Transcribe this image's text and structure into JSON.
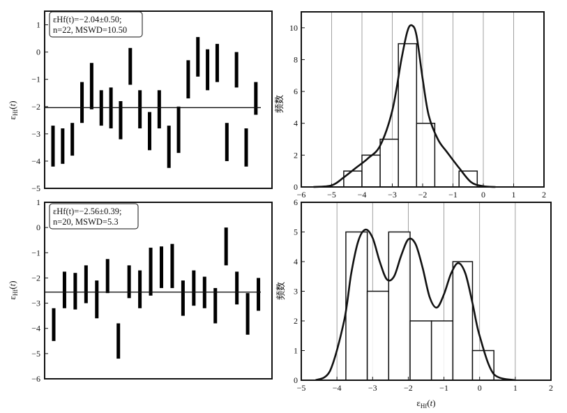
{
  "chart_data": [
    {
      "type": "bar",
      "subtype": "weighted-mean error bars",
      "ylabel": "εHf(t)",
      "ylim": [
        -5,
        1.5
      ],
      "yticks": [
        1,
        0,
        -1,
        -2,
        -3,
        -4,
        -5
      ],
      "mean_line": -2.04,
      "annotation": {
        "line1": "εHf(t)=−2.04±0.50;",
        "line2": "n=22, MSWD=10.50"
      },
      "bars": [
        {
          "low": -4.2,
          "high": -2.7
        },
        {
          "low": -4.1,
          "high": -2.8
        },
        {
          "low": -3.8,
          "high": -2.6
        },
        {
          "low": -2.6,
          "high": -1.1
        },
        {
          "low": -2.1,
          "high": -0.4
        },
        {
          "low": -2.7,
          "high": -1.4
        },
        {
          "low": -2.8,
          "high": -1.3
        },
        {
          "low": -3.2,
          "high": -1.8
        },
        {
          "low": -1.2,
          "high": 0.15
        },
        {
          "low": -2.8,
          "high": -1.4
        },
        {
          "low": -3.6,
          "high": -2.2
        },
        {
          "low": -2.8,
          "high": -1.4
        },
        {
          "low": -4.25,
          "high": -2.7
        },
        {
          "low": -3.7,
          "high": -2.0
        },
        {
          "low": -1.7,
          "high": -0.3
        },
        {
          "low": -0.9,
          "high": 0.55
        },
        {
          "low": -1.4,
          "high": 0.1
        },
        {
          "low": -1.1,
          "high": 0.3
        },
        {
          "low": -4.0,
          "high": -2.6
        },
        {
          "low": -1.3,
          "high": 0.0
        },
        {
          "low": -4.2,
          "high": -2.8
        },
        {
          "low": -2.3,
          "high": -1.1
        }
      ]
    },
    {
      "type": "bar",
      "subtype": "histogram with density curve",
      "ylabel": "频数",
      "xlim": [
        -6,
        2
      ],
      "ylim": [
        0,
        11
      ],
      "xticks": [
        -6,
        -5,
        -4,
        -3,
        -2,
        -1,
        0,
        1,
        2
      ],
      "yticks": [
        0,
        2,
        4,
        6,
        8,
        10
      ],
      "gridlines_x": [
        -5,
        -4,
        -3,
        -2,
        -1,
        0,
        1
      ],
      "bins": [
        {
          "from": -4.6,
          "to": -4.0,
          "count": 1
        },
        {
          "from": -4.0,
          "to": -3.4,
          "count": 2
        },
        {
          "from": -3.4,
          "to": -2.8,
          "count": 3
        },
        {
          "from": -2.8,
          "to": -2.2,
          "count": 9
        },
        {
          "from": -2.2,
          "to": -1.6,
          "count": 4
        },
        {
          "from": -1.6,
          "to": -1.0,
          "count": 0
        },
        {
          "from": -0.8,
          "to": -0.2,
          "count": 1
        }
      ],
      "curve": {
        "x": [
          -5.6,
          -5.0,
          -4.6,
          -4.2,
          -3.8,
          -3.4,
          -3.0,
          -2.7,
          -2.5,
          -2.35,
          -2.2,
          -2.0,
          -1.8,
          -1.5,
          -1.2,
          -0.8,
          -0.4,
          0.0,
          0.4
        ],
        "y": [
          0.0,
          0.1,
          0.6,
          1.2,
          1.8,
          2.6,
          4.8,
          8.0,
          9.8,
          10.15,
          9.5,
          6.8,
          4.5,
          3.0,
          2.2,
          1.2,
          0.3,
          0.05,
          0.0
        ]
      }
    },
    {
      "type": "bar",
      "subtype": "weighted-mean error bars",
      "ylabel": "εHf(t)",
      "ylim": [
        -6,
        1
      ],
      "yticks": [
        1,
        0,
        -1,
        -2,
        -3,
        -4,
        -5,
        -6
      ],
      "mean_line": -2.56,
      "annotation": {
        "line1": "εHf(t)=−2.56±0.39;",
        "line2": "n=20, MSWD=5.3"
      },
      "bars": [
        {
          "low": -4.5,
          "high": -3.2
        },
        {
          "low": -3.2,
          "high": -1.75
        },
        {
          "low": -3.25,
          "high": -1.8
        },
        {
          "low": -3.0,
          "high": -1.5
        },
        {
          "low": -3.6,
          "high": -2.1
        },
        {
          "low": -2.6,
          "high": -1.25
        },
        {
          "low": -5.2,
          "high": -3.8
        },
        {
          "low": -2.8,
          "high": -1.5
        },
        {
          "low": -3.2,
          "high": -1.7
        },
        {
          "low": -2.7,
          "high": -0.8
        },
        {
          "low": -2.4,
          "high": -0.75
        },
        {
          "low": -2.4,
          "high": -0.65
        },
        {
          "low": -3.5,
          "high": -2.1
        },
        {
          "low": -3.1,
          "high": -1.7
        },
        {
          "low": -3.2,
          "high": -1.95
        },
        {
          "low": -3.8,
          "high": -2.4
        },
        {
          "low": -1.5,
          "high": 0.0
        },
        {
          "low": -3.05,
          "high": -1.75
        },
        {
          "low": -4.25,
          "high": -2.6
        },
        {
          "low": -3.3,
          "high": -2.0
        }
      ]
    },
    {
      "type": "bar",
      "subtype": "histogram with density curve",
      "xlabel": "εHf(t)",
      "ylabel": "频数",
      "xlim": [
        -5,
        2
      ],
      "ylim": [
        0,
        6
      ],
      "xticks": [
        -5,
        -4,
        -3,
        -2,
        -1,
        0,
        1,
        2
      ],
      "yticks": [
        0,
        1,
        2,
        3,
        4,
        5,
        6
      ],
      "gridlines_x": [
        -4,
        -3,
        -2,
        -1,
        0,
        1
      ],
      "bins": [
        {
          "from": -3.75,
          "to": -3.15,
          "count": 5
        },
        {
          "from": -3.15,
          "to": -2.55,
          "count": 3
        },
        {
          "from": -2.55,
          "to": -1.95,
          "count": 5
        },
        {
          "from": -1.95,
          "to": -1.35,
          "count": 2
        },
        {
          "from": -1.35,
          "to": -0.75,
          "count": 2
        },
        {
          "from": -0.75,
          "to": -0.2,
          "count": 4
        },
        {
          "from": -0.2,
          "to": 0.4,
          "count": 1
        }
      ],
      "curve": {
        "x": [
          -4.6,
          -4.2,
          -3.8,
          -3.6,
          -3.4,
          -3.2,
          -3.0,
          -2.8,
          -2.6,
          -2.4,
          -2.2,
          -2.0,
          -1.8,
          -1.6,
          -1.4,
          -1.2,
          -1.0,
          -0.8,
          -0.6,
          -0.4,
          -0.2,
          0.0,
          0.4,
          1.0
        ],
        "y": [
          0.0,
          0.3,
          2.0,
          3.6,
          4.7,
          5.08,
          4.8,
          4.0,
          3.4,
          3.5,
          4.2,
          4.75,
          4.6,
          3.8,
          2.8,
          2.45,
          2.9,
          3.6,
          3.95,
          3.6,
          2.6,
          1.5,
          0.2,
          0.0
        ]
      }
    }
  ]
}
